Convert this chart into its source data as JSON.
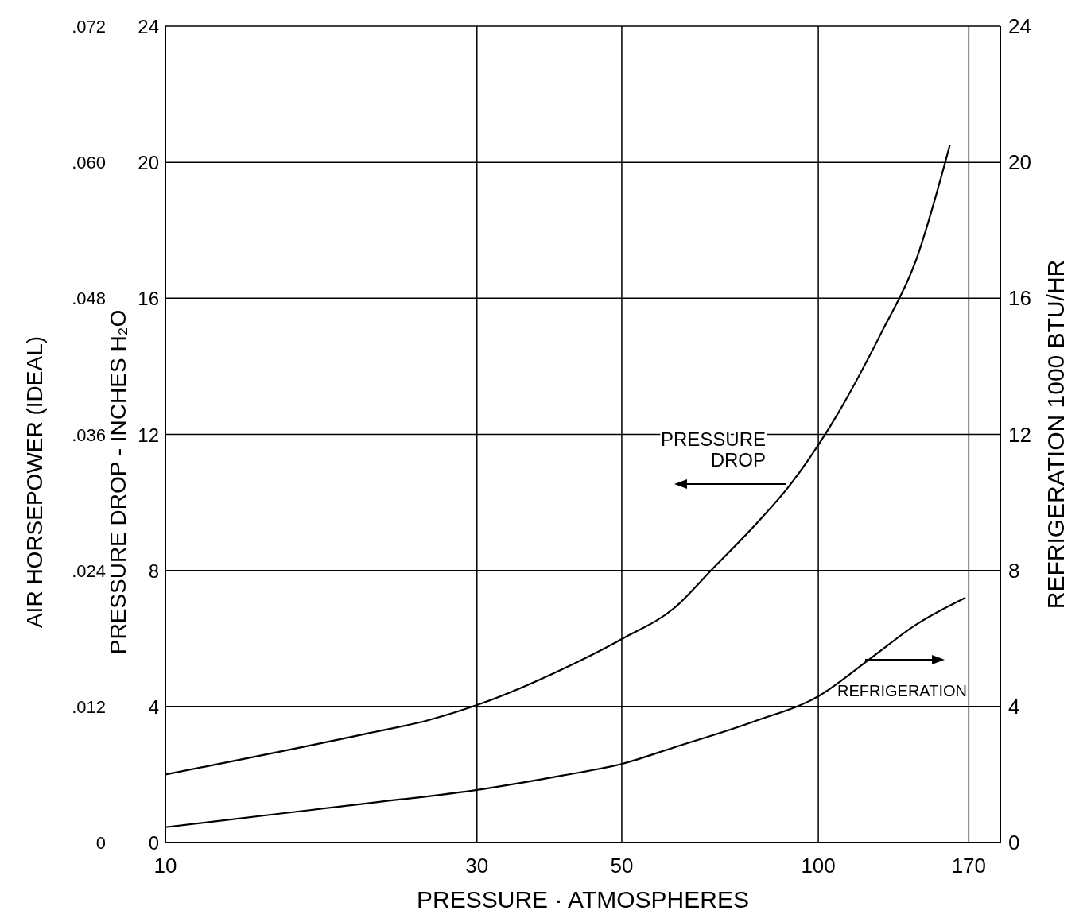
{
  "chart_data": {
    "type": "line",
    "xlabel": "PRESSURE · ATMOSPHERES",
    "ylabel": "PRESSURE DROP - INCHES H₂O",
    "y2label": "REFRIGERATION 1000 BTU/HR",
    "y3label": "AIR HORSEPOWER (IDEAL)",
    "log": "x",
    "xlim": [
      10,
      190
    ],
    "xticks": [
      10,
      30,
      50,
      100,
      170
    ],
    "ylim": [
      0,
      24
    ],
    "yticks": [
      0,
      4,
      8,
      12,
      16,
      20,
      24
    ],
    "y2lim": [
      0,
      24
    ],
    "y2ticks": [
      0,
      4,
      8,
      12,
      16,
      20,
      24
    ],
    "y3lim": [
      0,
      0.072
    ],
    "y3ticks": [
      0,
      {
        "value": 0.012,
        "label": ".012"
      },
      {
        "value": 0.024,
        "label": ".024"
      },
      {
        "value": 0.036,
        "label": ".036"
      },
      {
        "value": 0.048,
        "label": ".048"
      },
      {
        "value": 0.06,
        "label": ".060"
      },
      {
        "value": 0.072,
        "label": ".072"
      }
    ],
    "grid": true,
    "marker": "none",
    "line_style": "solid",
    "series": [
      {
        "color": "#000000",
        "x": [
          10,
          20.3,
          25.3,
          30.6,
          40.6,
          50.2,
          60.2,
          68.5,
          79.7,
          90.4,
          104,
          125,
          141,
          159
        ],
        "values": [
          2.0,
          3.2,
          3.6,
          4.1,
          5.1,
          6.0,
          6.9,
          8.0,
          9.3,
          10.5,
          12.2,
          15.0,
          17.1,
          20.5
        ]
      },
      {
        "color": "#000000",
        "x": [
          10,
          15.3,
          20.3,
          30.6,
          40.6,
          50.2,
          60.2,
          79.7,
          100,
          120,
          141,
          168
        ],
        "values": [
          0.45,
          0.87,
          1.15,
          1.57,
          1.97,
          2.32,
          2.8,
          3.56,
          4.3,
          5.4,
          6.4,
          7.2
        ]
      }
    ],
    "annotations": [
      "PRESSURE DROP",
      "REFRIGERATION"
    ]
  }
}
